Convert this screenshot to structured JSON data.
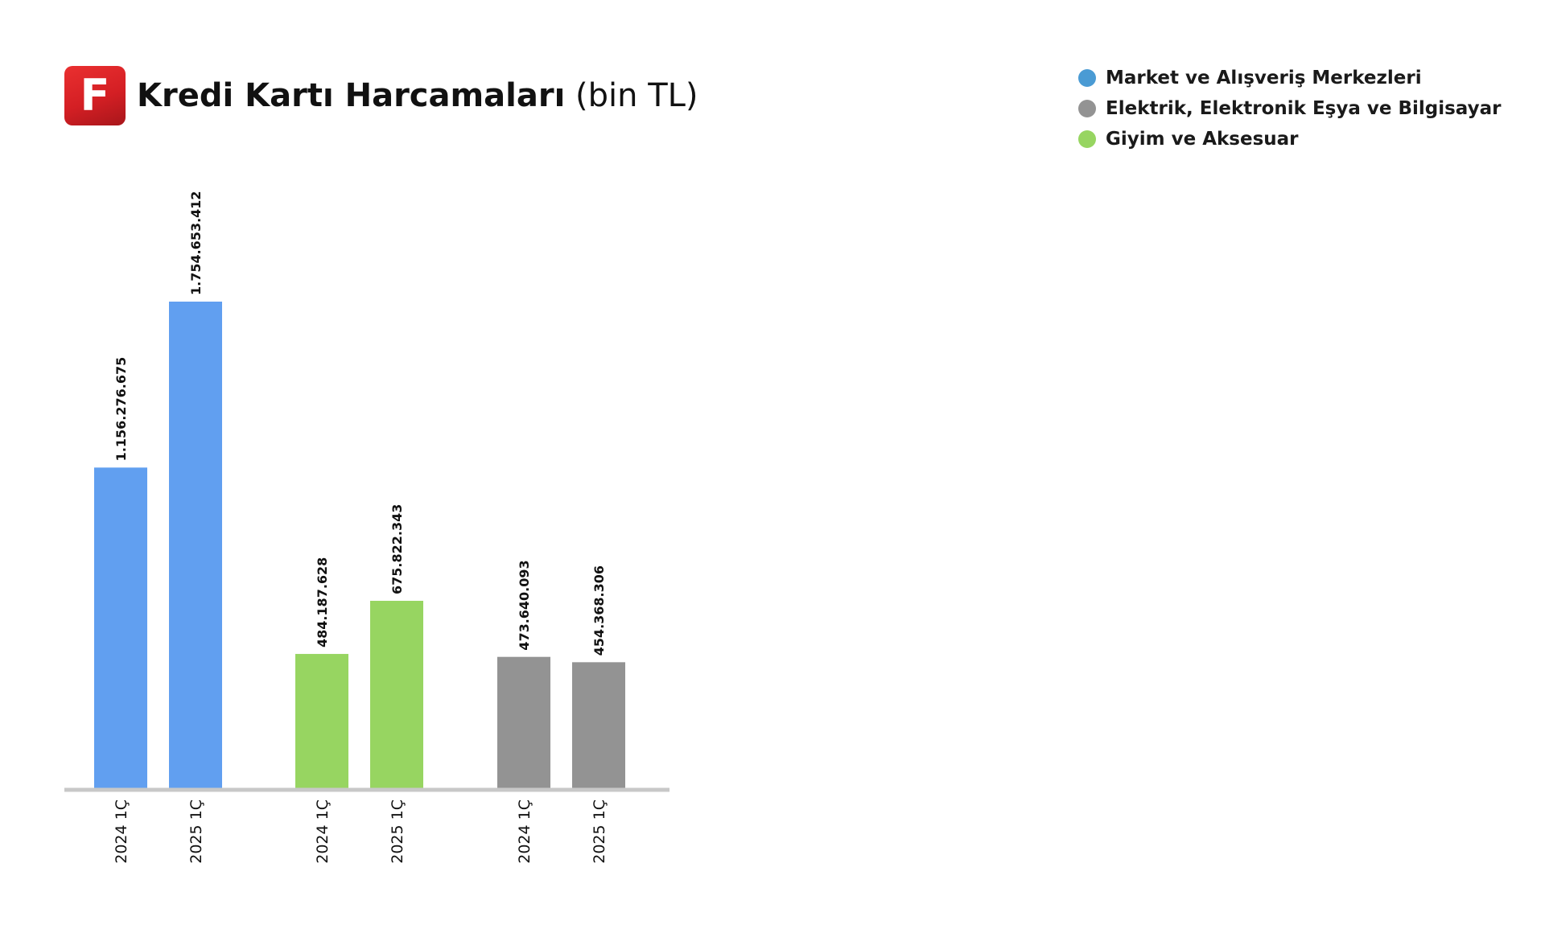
{
  "header": {
    "logo_letter": "F",
    "title_main": "Kredi Kartı Harcamaları",
    "title_unit": "(bin TL)"
  },
  "chart_data": {
    "type": "bar",
    "title": "Kredi Kartı Harcamaları (bin TL)",
    "legend_position": "top-right",
    "grid": false,
    "ylim": [
      0,
      2000000000
    ],
    "legend": [
      {
        "name": "Market ve Alışveriş Merkezleri",
        "color": "#4a9bd4"
      },
      {
        "name": "Elektrik, Elektronik Eşya ve Bilgisayar",
        "color": "#939393"
      },
      {
        "name": "Giyim ve Aksesuar",
        "color": "#97d561"
      }
    ],
    "groups": [
      {
        "color": "#619ff0",
        "bars": [
          {
            "category": "2024 1Ç",
            "value": 1156276675,
            "label": "1.156.276.675"
          },
          {
            "category": "2025 1Ç",
            "value": 1754653412,
            "label": "1.754.653.412"
          }
        ]
      },
      {
        "color": "#97d561",
        "bars": [
          {
            "category": "2024 1Ç",
            "value": 484187628,
            "label": "484.187.628"
          },
          {
            "category": "2025 1Ç",
            "value": 675822343,
            "label": "675.822.343"
          }
        ]
      },
      {
        "color": "#939393",
        "bars": [
          {
            "category": "2024 1Ç",
            "value": 473640093,
            "label": "473.640.093"
          },
          {
            "category": "2025 1Ç",
            "value": 454368306,
            "label": "454.368.306"
          }
        ]
      }
    ]
  }
}
